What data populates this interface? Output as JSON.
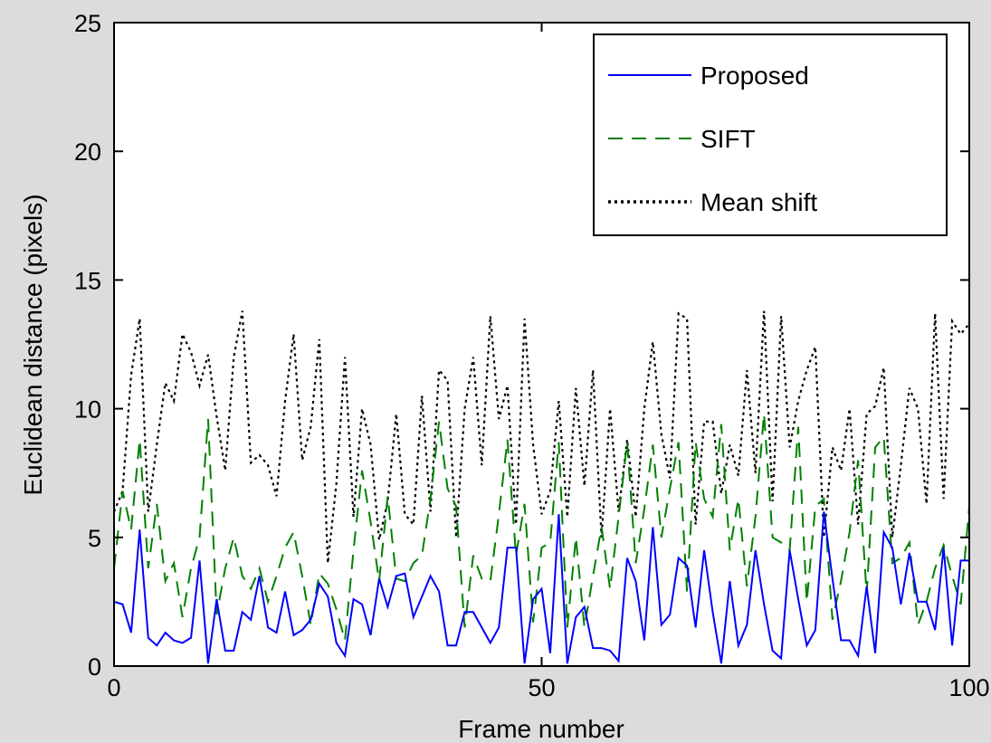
{
  "chart_data": {
    "type": "line",
    "xlabel": "Frame number",
    "ylabel": "Euclidean distance (pixels)",
    "xlim": [
      0,
      100
    ],
    "ylim": [
      0,
      25
    ],
    "xticks": [
      "0",
      "50",
      "100"
    ],
    "yticks": [
      "0",
      "5",
      "10",
      "15",
      "20",
      "25"
    ],
    "grid": false,
    "legend_position": "top-right",
    "x": [
      0,
      1,
      2,
      3,
      4,
      5,
      6,
      7,
      8,
      9,
      10,
      11,
      12,
      13,
      14,
      15,
      16,
      17,
      18,
      19,
      20,
      21,
      22,
      23,
      24,
      25,
      26,
      27,
      28,
      29,
      30,
      31,
      32,
      33,
      34,
      35,
      36,
      37,
      38,
      39,
      40,
      41,
      42,
      43,
      44,
      45,
      46,
      47,
      48,
      49,
      50,
      51,
      52,
      53,
      54,
      55,
      56,
      57,
      58,
      59,
      60,
      61,
      62,
      63,
      64,
      65,
      66,
      67,
      68,
      69,
      70,
      71,
      72,
      73,
      74,
      75,
      76,
      77,
      78,
      79,
      80,
      81,
      82,
      83,
      84,
      85,
      86,
      87,
      88,
      89,
      90,
      91,
      92,
      93,
      94,
      95,
      96,
      97,
      98,
      99,
      100
    ],
    "series": [
      {
        "name": "Proposed",
        "color": "#0000ff",
        "dash": "solid",
        "values": [
          2.5,
          2.4,
          1.3,
          5.3,
          1.1,
          0.8,
          1.3,
          1.0,
          0.9,
          1.1,
          4.1,
          0.1,
          2.6,
          0.6,
          0.6,
          2.1,
          1.8,
          3.5,
          1.5,
          1.3,
          2.9,
          1.2,
          1.4,
          1.8,
          3.2,
          2.7,
          0.9,
          0.4,
          2.6,
          2.4,
          1.2,
          3.4,
          2.3,
          3.5,
          3.6,
          1.9,
          2.7,
          3.5,
          2.9,
          0.8,
          0.8,
          2.1,
          2.1,
          1.5,
          0.9,
          1.5,
          4.6,
          4.6,
          0.1,
          2.6,
          3.0,
          0.5,
          5.9,
          0.1,
          1.9,
          2.3,
          0.7,
          0.7,
          0.6,
          0.2,
          4.2,
          3.3,
          1.0,
          5.4,
          1.6,
          2.0,
          4.2,
          3.9,
          1.5,
          4.5,
          2.1,
          0.1,
          3.3,
          0.8,
          1.6,
          4.5,
          2.4,
          0.6,
          0.3,
          4.5,
          2.6,
          0.8,
          1.4,
          6.0,
          3.4,
          1.0,
          1.0,
          0.4,
          3.1,
          0.5,
          5.2,
          4.6,
          2.4,
          4.4,
          2.5,
          2.5,
          1.4,
          4.6,
          0.8,
          4.1,
          4.1
        ]
      },
      {
        "name": "SIFT",
        "color": "#008000",
        "dash": "dashed",
        "values": [
          3.8,
          6.8,
          5.3,
          8.8,
          3.8,
          6.3,
          3.3,
          4.0,
          1.9,
          3.8,
          5.0,
          9.6,
          2.0,
          3.8,
          5.0,
          3.5,
          3.0,
          3.8,
          2.5,
          3.5,
          4.6,
          5.2,
          3.5,
          1.6,
          3.6,
          3.2,
          2.2,
          1.0,
          4.5,
          7.6,
          5.6,
          3.3,
          6.6,
          3.4,
          3.3,
          4.0,
          4.3,
          6.5,
          9.5,
          6.9,
          6.2,
          1.5,
          4.3,
          3.4,
          3.3,
          5.9,
          8.8,
          4.3,
          6.3,
          1.7,
          4.6,
          4.8,
          8.7,
          1.5,
          5.0,
          1.5,
          3.5,
          5.4,
          3.0,
          5.8,
          8.7,
          4.0,
          6.1,
          8.6,
          5.0,
          6.9,
          8.7,
          2.9,
          8.7,
          6.5,
          5.8,
          9.4,
          4.5,
          6.5,
          3.1,
          5.8,
          9.8,
          5.0,
          4.8,
          4.5,
          9.3,
          2.5,
          6.2,
          6.5,
          1.8,
          3.3,
          5.2,
          8.0,
          2.8,
          8.5,
          8.9,
          4.0,
          4.2,
          4.8,
          1.6,
          2.5,
          3.8,
          4.7,
          3.5,
          2.4,
          6.2
        ]
      },
      {
        "name": "Mean shift",
        "color": "#000000",
        "dash": "dotted",
        "values": [
          6.0,
          6.8,
          11.3,
          13.5,
          6.0,
          8.6,
          11.0,
          10.3,
          12.9,
          12.2,
          10.9,
          12.1,
          9.7,
          7.6,
          12.0,
          13.8,
          7.9,
          8.2,
          7.8,
          6.6,
          10.3,
          12.9,
          8.0,
          9.3,
          12.7,
          4.0,
          7.1,
          12.0,
          5.8,
          10.0,
          8.6,
          4.9,
          6.4,
          9.8,
          5.9,
          5.5,
          10.5,
          6.0,
          11.5,
          11.1,
          5.0,
          10.0,
          12.0,
          7.8,
          13.6,
          9.6,
          10.9,
          5.5,
          13.5,
          8.6,
          5.9,
          6.8,
          10.3,
          5.8,
          10.8,
          7.0,
          11.5,
          5.0,
          10.0,
          6.0,
          8.8,
          5.8,
          10.0,
          12.6,
          9.0,
          7.3,
          13.7,
          13.5,
          5.5,
          9.5,
          9.5,
          6.7,
          8.6,
          7.4,
          11.5,
          7.5,
          13.8,
          6.4,
          13.6,
          8.5,
          10.3,
          11.5,
          12.4,
          5.0,
          8.5,
          7.6,
          10.0,
          5.5,
          9.8,
          10.1,
          11.6,
          5.0,
          7.8,
          10.8,
          10.0,
          6.3,
          13.7,
          6.5,
          13.4,
          12.9,
          13.3
        ]
      }
    ]
  }
}
